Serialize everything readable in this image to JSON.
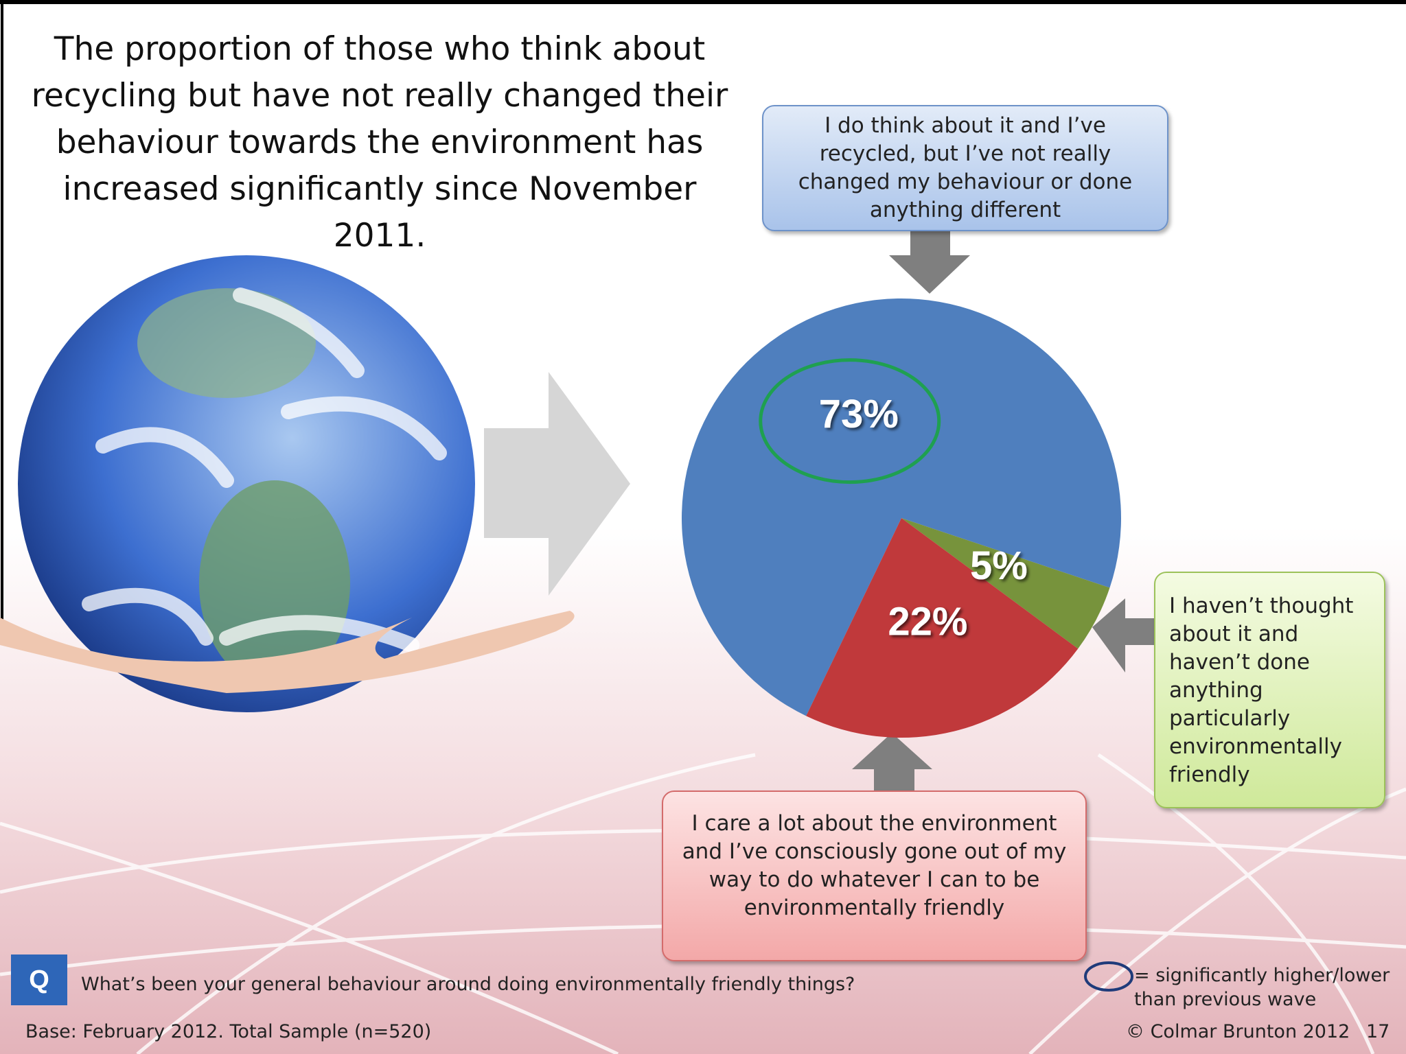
{
  "chart_data": {
    "type": "pie",
    "title": "The proportion of those who think about recycling but have not really changed their behaviour towards the environment has increased significantly since November 2011.",
    "categories": [
      "I do think about it and I’ve recycled, but I’ve not really changed my behaviour or done anything different",
      "I haven’t thought about it and haven’t done anything particularly environmentally friendly",
      "I care a lot about the environment and I’ve consciously gone out of my way to do whatever I can to be environmentally friendly"
    ],
    "values": [
      73,
      5,
      22
    ],
    "value_labels": [
      "73%",
      "5%",
      "22%"
    ],
    "colors": [
      "#4f7fbe",
      "#77933c",
      "#c0393b"
    ]
  },
  "question": {
    "icon": "Q",
    "text": "What’s been your general behaviour around doing environmentally friendly things?"
  },
  "significance_note": "= significantly higher/lower than previous wave",
  "footer": {
    "base": "Base: February 2012.  Total Sample (n=520)",
    "copyright": "© Colmar Brunton 2012",
    "page": "17"
  }
}
